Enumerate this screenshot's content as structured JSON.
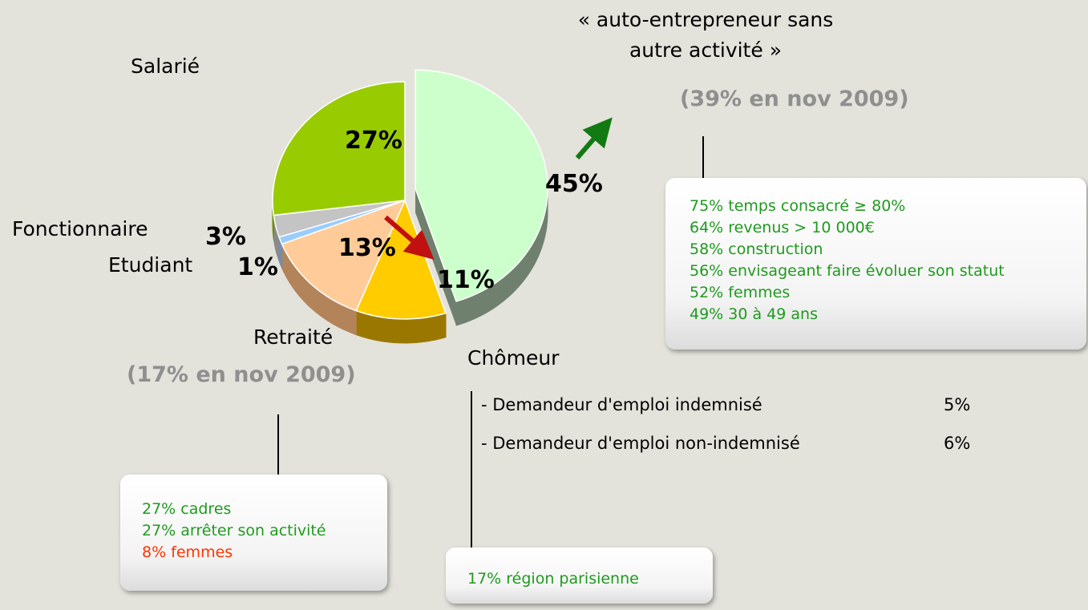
{
  "chart_data": {
    "type": "pie",
    "categories": [
      "« auto-entrepreneur sans autre activité »",
      "Chômeur",
      "Retraité",
      "Etudiant",
      "Fonctionnaire",
      "Salarié"
    ],
    "values": [
      45,
      11,
      13,
      1,
      3,
      27
    ],
    "value_labels": [
      "45%",
      "11%",
      "13%",
      "1%",
      "3%",
      "27%"
    ],
    "colors": [
      "#ccffcc",
      "#ffcc00",
      "#ffcc99",
      "#99ccff",
      "#c4c4c4",
      "#99cc00"
    ],
    "side_colors": [
      "#6f806f",
      "#9a7800",
      "#b3835a",
      "#6a90b8",
      "#8a8a8a",
      "#6b8f00"
    ],
    "annotations": {
      "auto_previous": "(39% en nov 2009)",
      "retraite_previous": "(17% en nov 2009)",
      "auto_details": [
        "75% temps consacré ≥ 80%",
        "64% revenus > 10 000€",
        "58% construction",
        "56% envisageant faire évoluer son statut",
        "52% femmes",
        "49% 30 à 49 ans"
      ],
      "retraite_details": [
        "27% cadres",
        "27% arrêter son activité",
        "8% femmes"
      ],
      "retraite_detail_colors": [
        "#1f9a1f",
        "#1f9a1f",
        "#ff3300"
      ],
      "chomeur_details": [
        "17% région parisienne"
      ],
      "chomeur_breakdown": [
        {
          "label": "- Demandeur d'emploi indemnisé",
          "share": "5%"
        },
        {
          "label": "- Demandeur d'emploi non-indemnisé",
          "share": "6%"
        }
      ]
    }
  }
}
